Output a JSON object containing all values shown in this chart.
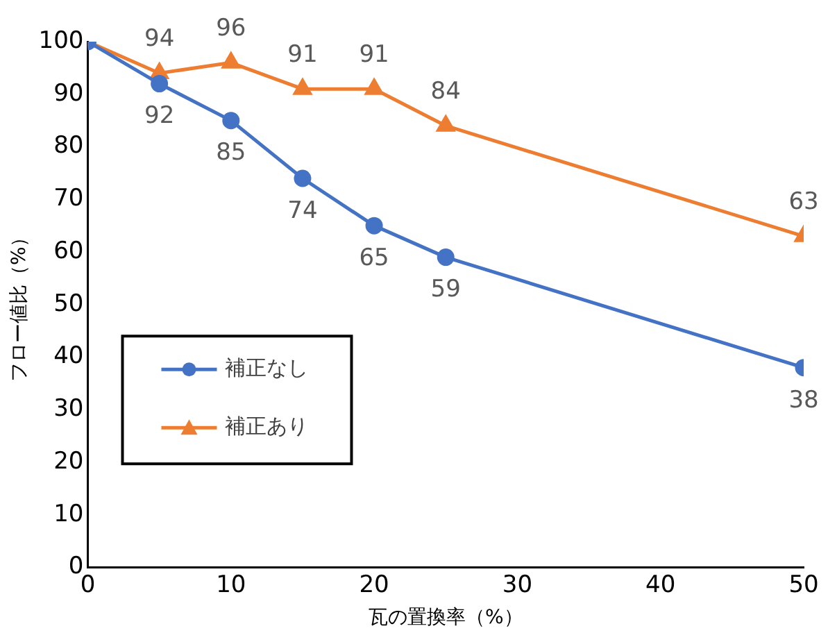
{
  "chart_data": {
    "type": "line",
    "xlabel": "瓦の置換率（%）",
    "ylabel": "フロー値比（%）",
    "x": [
      0,
      5,
      10,
      15,
      20,
      25,
      50
    ],
    "series": [
      {
        "name": "補正なし",
        "color": "#4472c4",
        "marker": "circle",
        "values": [
          100,
          92,
          85,
          74,
          65,
          59,
          38
        ],
        "value_labels": [
          null,
          "92",
          "85",
          "74",
          "65",
          "59",
          "38"
        ]
      },
      {
        "name": "補正あり",
        "color": "#ed7d31",
        "marker": "triangle",
        "values": [
          100,
          94,
          96,
          91,
          91,
          84,
          63
        ],
        "value_labels": [
          null,
          "94",
          "96",
          "91",
          "91",
          "84",
          "63"
        ]
      }
    ],
    "xlim": [
      0,
      50
    ],
    "xticks": [
      0,
      10,
      20,
      30,
      40,
      50
    ],
    "ylim": [
      0,
      100
    ],
    "yticks": [
      0,
      10,
      20,
      30,
      40,
      50,
      60,
      70,
      80,
      90,
      100
    ],
    "grid": false,
    "legend": "center left",
    "line_style": "solid"
  }
}
